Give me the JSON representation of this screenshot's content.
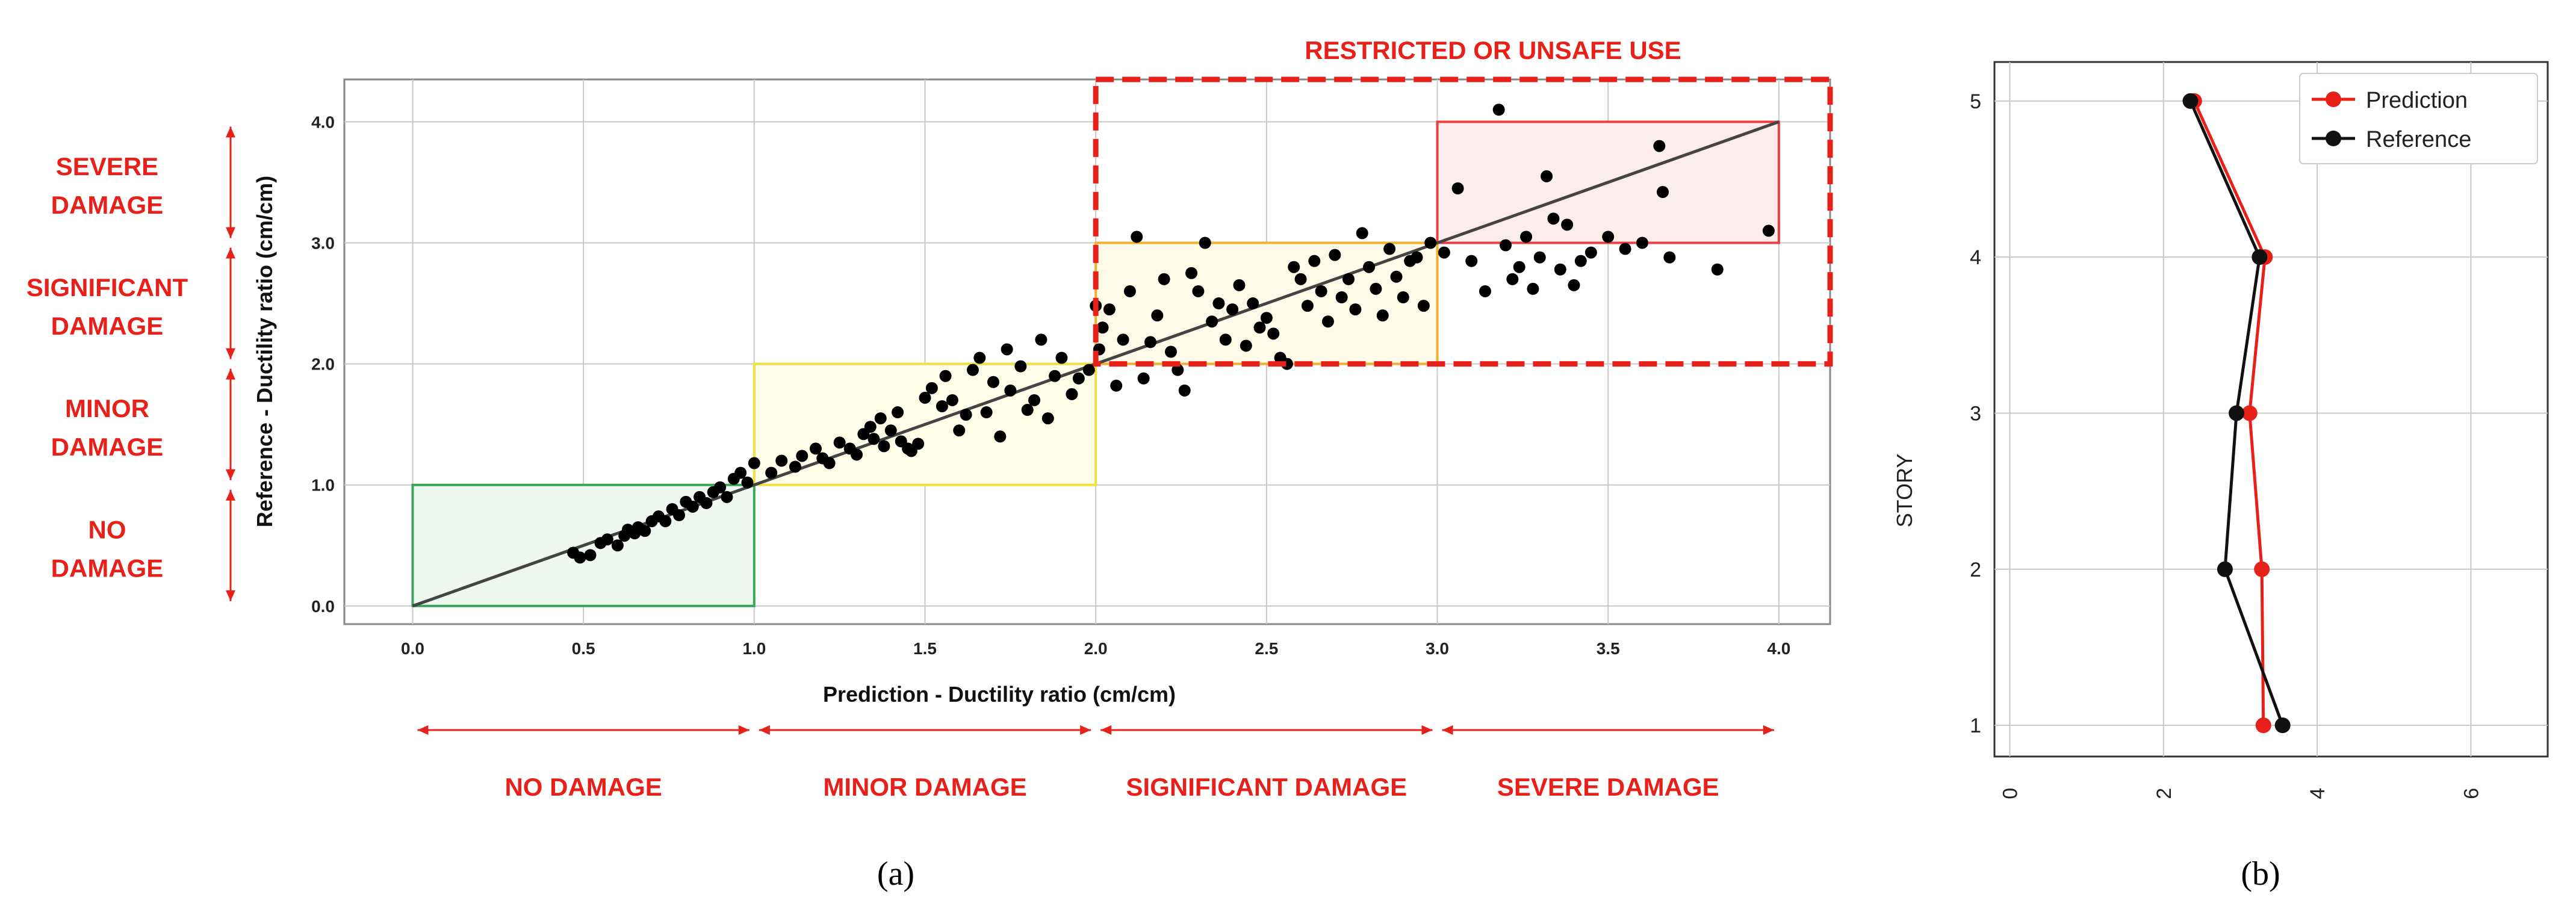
{
  "chart_data": [
    {
      "id": "a",
      "type": "scatter",
      "panel_label": "(a)",
      "xlabel": "Prediction - Ductility ratio (cm/cm)",
      "ylabel": "Reference - Ductility ratio (cm/cm)",
      "xlim": [
        -0.2,
        4.15
      ],
      "ylim": [
        -0.15,
        4.35
      ],
      "xticks": [
        "0.0",
        "0.5",
        "1.0",
        "1.5",
        "2.0",
        "2.5",
        "3.0",
        "3.5",
        "4.0"
      ],
      "yticks": [
        "0.0",
        "1.0",
        "2.0",
        "3.0",
        "4.0"
      ],
      "grid": true,
      "reference_line": {
        "from": [
          0,
          0
        ],
        "to": [
          4.0,
          4.0
        ],
        "color": "#444444"
      },
      "zones": [
        {
          "x": [
            0,
            1
          ],
          "y": [
            0,
            1
          ],
          "edge": "#3aa65a",
          "fill": "#eef7f0"
        },
        {
          "x": [
            1,
            2
          ],
          "y": [
            1,
            2
          ],
          "edge": "#f0e040",
          "fill": "#fdfde8"
        },
        {
          "x": [
            2,
            3
          ],
          "y": [
            2,
            3
          ],
          "edge": "#f0b030",
          "fill": "#fdfae8"
        },
        {
          "x": [
            3,
            4
          ],
          "y": [
            3,
            4
          ],
          "edge": "#e84040",
          "fill": "#fcecec"
        }
      ],
      "unsafe_box": {
        "x": [
          2.0,
          4.15
        ],
        "y": [
          2.0,
          4.35
        ],
        "label": "RESTRICTED OR UNSAFE USE",
        "color": "#e8201a"
      },
      "x_damage_labels": [
        "NO DAMAGE",
        "MINOR DAMAGE",
        "SIGNIFICANT DAMAGE",
        "SEVERE DAMAGE"
      ],
      "y_damage_labels": [
        [
          "NO",
          "DAMAGE"
        ],
        [
          "MINOR",
          "DAMAGE"
        ],
        [
          "SIGNIFICANT",
          "DAMAGE"
        ],
        [
          "SEVERE",
          "DAMAGE"
        ]
      ],
      "point_color": "#000000",
      "points": [
        [
          0.47,
          0.44
        ],
        [
          0.49,
          0.4
        ],
        [
          0.52,
          0.42
        ],
        [
          0.55,
          0.52
        ],
        [
          0.57,
          0.55
        ],
        [
          0.6,
          0.5
        ],
        [
          0.62,
          0.58
        ],
        [
          0.63,
          0.63
        ],
        [
          0.65,
          0.6
        ],
        [
          0.66,
          0.65
        ],
        [
          0.68,
          0.62
        ],
        [
          0.7,
          0.7
        ],
        [
          0.72,
          0.74
        ],
        [
          0.74,
          0.7
        ],
        [
          0.76,
          0.8
        ],
        [
          0.78,
          0.75
        ],
        [
          0.8,
          0.86
        ],
        [
          0.82,
          0.82
        ],
        [
          0.84,
          0.9
        ],
        [
          0.86,
          0.85
        ],
        [
          0.88,
          0.94
        ],
        [
          0.9,
          0.98
        ],
        [
          0.92,
          0.9
        ],
        [
          0.94,
          1.05
        ],
        [
          0.96,
          1.1
        ],
        [
          0.98,
          1.02
        ],
        [
          1.0,
          1.18
        ],
        [
          1.05,
          1.1
        ],
        [
          1.08,
          1.2
        ],
        [
          1.12,
          1.15
        ],
        [
          1.14,
          1.24
        ],
        [
          1.18,
          1.3
        ],
        [
          1.2,
          1.22
        ],
        [
          1.22,
          1.18
        ],
        [
          1.25,
          1.35
        ],
        [
          1.28,
          1.3
        ],
        [
          1.3,
          1.25
        ],
        [
          1.32,
          1.42
        ],
        [
          1.34,
          1.48
        ],
        [
          1.35,
          1.38
        ],
        [
          1.37,
          1.55
        ],
        [
          1.38,
          1.32
        ],
        [
          1.4,
          1.45
        ],
        [
          1.42,
          1.6
        ],
        [
          1.43,
          1.36
        ],
        [
          1.45,
          1.3
        ],
        [
          1.46,
          1.28
        ],
        [
          1.48,
          1.34
        ],
        [
          1.5,
          1.72
        ],
        [
          1.52,
          1.8
        ],
        [
          1.55,
          1.65
        ],
        [
          1.56,
          1.9
        ],
        [
          1.58,
          1.7
        ],
        [
          1.6,
          1.45
        ],
        [
          1.62,
          1.58
        ],
        [
          1.64,
          1.95
        ],
        [
          1.66,
          2.05
        ],
        [
          1.68,
          1.6
        ],
        [
          1.7,
          1.85
        ],
        [
          1.72,
          1.4
        ],
        [
          1.74,
          2.12
        ],
        [
          1.75,
          1.78
        ],
        [
          1.78,
          1.98
        ],
        [
          1.8,
          1.62
        ],
        [
          1.82,
          1.7
        ],
        [
          1.84,
          2.2
        ],
        [
          1.86,
          1.55
        ],
        [
          1.88,
          1.9
        ],
        [
          1.9,
          2.05
        ],
        [
          1.93,
          1.75
        ],
        [
          1.95,
          1.88
        ],
        [
          1.98,
          1.95
        ],
        [
          2.0,
          2.48
        ],
        [
          2.01,
          2.12
        ],
        [
          2.02,
          2.3
        ],
        [
          2.04,
          2.45
        ],
        [
          2.06,
          1.82
        ],
        [
          2.08,
          2.2
        ],
        [
          2.1,
          2.6
        ],
        [
          2.12,
          3.05
        ],
        [
          2.14,
          1.88
        ],
        [
          2.16,
          2.18
        ],
        [
          2.18,
          2.4
        ],
        [
          2.2,
          2.7
        ],
        [
          2.22,
          2.1
        ],
        [
          2.24,
          1.95
        ],
        [
          2.26,
          1.78
        ],
        [
          2.28,
          2.75
        ],
        [
          2.3,
          2.6
        ],
        [
          2.32,
          3.0
        ],
        [
          2.34,
          2.35
        ],
        [
          2.36,
          2.5
        ],
        [
          2.38,
          2.2
        ],
        [
          2.4,
          2.45
        ],
        [
          2.42,
          2.65
        ],
        [
          2.44,
          2.15
        ],
        [
          2.46,
          2.5
        ],
        [
          2.48,
          2.3
        ],
        [
          2.5,
          2.38
        ],
        [
          2.52,
          2.25
        ],
        [
          2.54,
          2.05
        ],
        [
          2.56,
          2.0
        ],
        [
          2.58,
          2.8
        ],
        [
          2.6,
          2.7
        ],
        [
          2.62,
          2.48
        ],
        [
          2.64,
          2.85
        ],
        [
          2.66,
          2.6
        ],
        [
          2.68,
          2.35
        ],
        [
          2.7,
          2.9
        ],
        [
          2.72,
          2.55
        ],
        [
          2.74,
          2.7
        ],
        [
          2.76,
          2.45
        ],
        [
          2.78,
          3.08
        ],
        [
          2.8,
          2.8
        ],
        [
          2.82,
          2.62
        ],
        [
          2.84,
          2.4
        ],
        [
          2.86,
          2.95
        ],
        [
          2.88,
          2.72
        ],
        [
          2.9,
          2.55
        ],
        [
          2.92,
          2.85
        ],
        [
          2.94,
          2.88
        ],
        [
          2.96,
          2.48
        ],
        [
          2.98,
          3.0
        ],
        [
          3.02,
          2.92
        ],
        [
          3.06,
          3.45
        ],
        [
          3.1,
          2.85
        ],
        [
          3.14,
          2.6
        ],
        [
          3.18,
          4.1
        ],
        [
          3.2,
          2.98
        ],
        [
          3.22,
          2.7
        ],
        [
          3.24,
          2.8
        ],
        [
          3.26,
          3.05
        ],
        [
          3.28,
          2.62
        ],
        [
          3.3,
          2.88
        ],
        [
          3.32,
          3.55
        ],
        [
          3.34,
          3.2
        ],
        [
          3.36,
          2.78
        ],
        [
          3.38,
          3.15
        ],
        [
          3.4,
          2.65
        ],
        [
          3.42,
          2.85
        ],
        [
          3.45,
          2.92
        ],
        [
          3.5,
          3.05
        ],
        [
          3.55,
          2.95
        ],
        [
          3.6,
          3.0
        ],
        [
          3.65,
          3.8
        ],
        [
          3.66,
          3.42
        ],
        [
          3.68,
          2.88
        ],
        [
          3.82,
          2.78
        ],
        [
          3.97,
          3.1
        ]
      ]
    },
    {
      "id": "b",
      "type": "line",
      "panel_label": "(b)",
      "ylabel": "STORY",
      "xlabel": "",
      "xlim": [
        -0.2,
        7.0
      ],
      "ylim": [
        0.8,
        5.25
      ],
      "xticks": [
        "0",
        "2",
        "4",
        "6"
      ],
      "yticks": [
        "1",
        "2",
        "3",
        "4",
        "5"
      ],
      "grid": true,
      "legend_position": "top-right",
      "series": [
        {
          "name": "Prediction",
          "color": "#e8201a",
          "x": [
            3.3,
            3.28,
            3.12,
            3.32,
            2.4
          ],
          "y": [
            1,
            2,
            3,
            4,
            5
          ]
        },
        {
          "name": "Reference",
          "color": "#111111",
          "x": [
            3.55,
            2.8,
            2.95,
            3.25,
            2.35
          ],
          "y": [
            1,
            2,
            3,
            4,
            5
          ]
        }
      ]
    }
  ]
}
